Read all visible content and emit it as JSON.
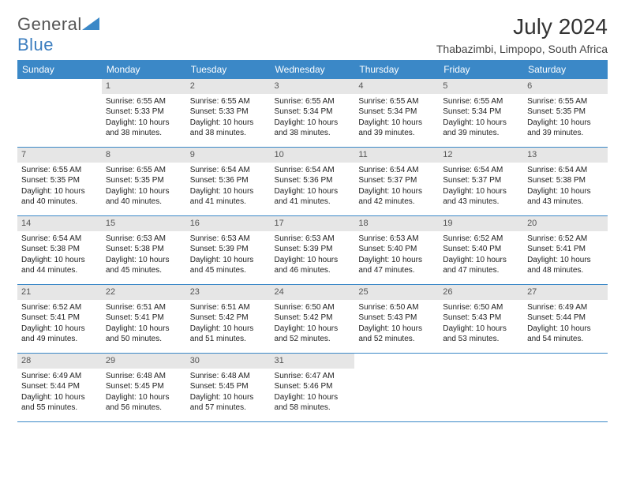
{
  "brand": {
    "part1": "General",
    "part2": "Blue",
    "logo_color": "#3b88c7"
  },
  "title": "July 2024",
  "location": "Thabazimbi, Limpopo, South Africa",
  "colors": {
    "header_bg": "#3b88c7",
    "header_text": "#ffffff",
    "daynum_bg": "#e6e6e6",
    "cell_border": "#3b88c7",
    "body_bg": "#ffffff",
    "text": "#222222"
  },
  "day_headers": [
    "Sunday",
    "Monday",
    "Tuesday",
    "Wednesday",
    "Thursday",
    "Friday",
    "Saturday"
  ],
  "weeks": [
    [
      null,
      {
        "n": "1",
        "sunrise": "Sunrise: 6:55 AM",
        "sunset": "Sunset: 5:33 PM",
        "daylight": "Daylight: 10 hours and 38 minutes."
      },
      {
        "n": "2",
        "sunrise": "Sunrise: 6:55 AM",
        "sunset": "Sunset: 5:33 PM",
        "daylight": "Daylight: 10 hours and 38 minutes."
      },
      {
        "n": "3",
        "sunrise": "Sunrise: 6:55 AM",
        "sunset": "Sunset: 5:34 PM",
        "daylight": "Daylight: 10 hours and 38 minutes."
      },
      {
        "n": "4",
        "sunrise": "Sunrise: 6:55 AM",
        "sunset": "Sunset: 5:34 PM",
        "daylight": "Daylight: 10 hours and 39 minutes."
      },
      {
        "n": "5",
        "sunrise": "Sunrise: 6:55 AM",
        "sunset": "Sunset: 5:34 PM",
        "daylight": "Daylight: 10 hours and 39 minutes."
      },
      {
        "n": "6",
        "sunrise": "Sunrise: 6:55 AM",
        "sunset": "Sunset: 5:35 PM",
        "daylight": "Daylight: 10 hours and 39 minutes."
      }
    ],
    [
      {
        "n": "7",
        "sunrise": "Sunrise: 6:55 AM",
        "sunset": "Sunset: 5:35 PM",
        "daylight": "Daylight: 10 hours and 40 minutes."
      },
      {
        "n": "8",
        "sunrise": "Sunrise: 6:55 AM",
        "sunset": "Sunset: 5:35 PM",
        "daylight": "Daylight: 10 hours and 40 minutes."
      },
      {
        "n": "9",
        "sunrise": "Sunrise: 6:54 AM",
        "sunset": "Sunset: 5:36 PM",
        "daylight": "Daylight: 10 hours and 41 minutes."
      },
      {
        "n": "10",
        "sunrise": "Sunrise: 6:54 AM",
        "sunset": "Sunset: 5:36 PM",
        "daylight": "Daylight: 10 hours and 41 minutes."
      },
      {
        "n": "11",
        "sunrise": "Sunrise: 6:54 AM",
        "sunset": "Sunset: 5:37 PM",
        "daylight": "Daylight: 10 hours and 42 minutes."
      },
      {
        "n": "12",
        "sunrise": "Sunrise: 6:54 AM",
        "sunset": "Sunset: 5:37 PM",
        "daylight": "Daylight: 10 hours and 43 minutes."
      },
      {
        "n": "13",
        "sunrise": "Sunrise: 6:54 AM",
        "sunset": "Sunset: 5:38 PM",
        "daylight": "Daylight: 10 hours and 43 minutes."
      }
    ],
    [
      {
        "n": "14",
        "sunrise": "Sunrise: 6:54 AM",
        "sunset": "Sunset: 5:38 PM",
        "daylight": "Daylight: 10 hours and 44 minutes."
      },
      {
        "n": "15",
        "sunrise": "Sunrise: 6:53 AM",
        "sunset": "Sunset: 5:38 PM",
        "daylight": "Daylight: 10 hours and 45 minutes."
      },
      {
        "n": "16",
        "sunrise": "Sunrise: 6:53 AM",
        "sunset": "Sunset: 5:39 PM",
        "daylight": "Daylight: 10 hours and 45 minutes."
      },
      {
        "n": "17",
        "sunrise": "Sunrise: 6:53 AM",
        "sunset": "Sunset: 5:39 PM",
        "daylight": "Daylight: 10 hours and 46 minutes."
      },
      {
        "n": "18",
        "sunrise": "Sunrise: 6:53 AM",
        "sunset": "Sunset: 5:40 PM",
        "daylight": "Daylight: 10 hours and 47 minutes."
      },
      {
        "n": "19",
        "sunrise": "Sunrise: 6:52 AM",
        "sunset": "Sunset: 5:40 PM",
        "daylight": "Daylight: 10 hours and 47 minutes."
      },
      {
        "n": "20",
        "sunrise": "Sunrise: 6:52 AM",
        "sunset": "Sunset: 5:41 PM",
        "daylight": "Daylight: 10 hours and 48 minutes."
      }
    ],
    [
      {
        "n": "21",
        "sunrise": "Sunrise: 6:52 AM",
        "sunset": "Sunset: 5:41 PM",
        "daylight": "Daylight: 10 hours and 49 minutes."
      },
      {
        "n": "22",
        "sunrise": "Sunrise: 6:51 AM",
        "sunset": "Sunset: 5:41 PM",
        "daylight": "Daylight: 10 hours and 50 minutes."
      },
      {
        "n": "23",
        "sunrise": "Sunrise: 6:51 AM",
        "sunset": "Sunset: 5:42 PM",
        "daylight": "Daylight: 10 hours and 51 minutes."
      },
      {
        "n": "24",
        "sunrise": "Sunrise: 6:50 AM",
        "sunset": "Sunset: 5:42 PM",
        "daylight": "Daylight: 10 hours and 52 minutes."
      },
      {
        "n": "25",
        "sunrise": "Sunrise: 6:50 AM",
        "sunset": "Sunset: 5:43 PM",
        "daylight": "Daylight: 10 hours and 52 minutes."
      },
      {
        "n": "26",
        "sunrise": "Sunrise: 6:50 AM",
        "sunset": "Sunset: 5:43 PM",
        "daylight": "Daylight: 10 hours and 53 minutes."
      },
      {
        "n": "27",
        "sunrise": "Sunrise: 6:49 AM",
        "sunset": "Sunset: 5:44 PM",
        "daylight": "Daylight: 10 hours and 54 minutes."
      }
    ],
    [
      {
        "n": "28",
        "sunrise": "Sunrise: 6:49 AM",
        "sunset": "Sunset: 5:44 PM",
        "daylight": "Daylight: 10 hours and 55 minutes."
      },
      {
        "n": "29",
        "sunrise": "Sunrise: 6:48 AM",
        "sunset": "Sunset: 5:45 PM",
        "daylight": "Daylight: 10 hours and 56 minutes."
      },
      {
        "n": "30",
        "sunrise": "Sunrise: 6:48 AM",
        "sunset": "Sunset: 5:45 PM",
        "daylight": "Daylight: 10 hours and 57 minutes."
      },
      {
        "n": "31",
        "sunrise": "Sunrise: 6:47 AM",
        "sunset": "Sunset: 5:46 PM",
        "daylight": "Daylight: 10 hours and 58 minutes."
      },
      null,
      null,
      null
    ]
  ]
}
